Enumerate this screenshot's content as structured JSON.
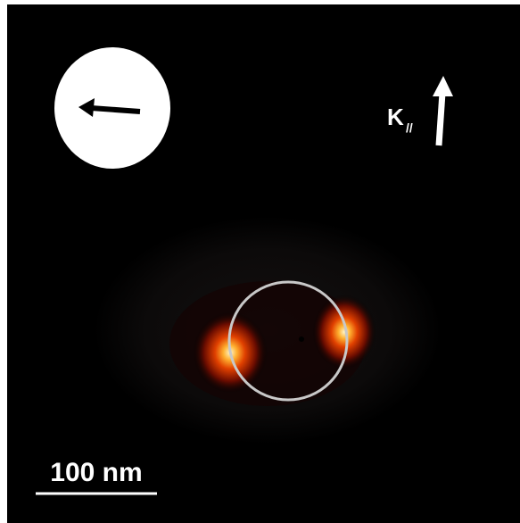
{
  "labels": {
    "k": "K",
    "k_subscript": "//",
    "scale_bar": "100 nm"
  }
}
